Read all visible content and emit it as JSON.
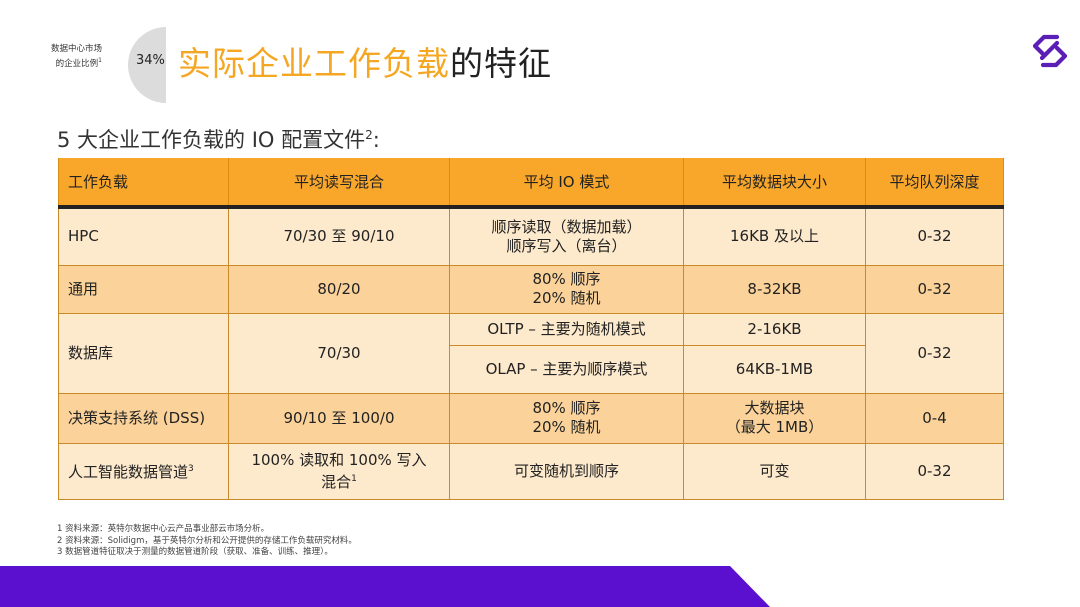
{
  "market": {
    "label_line1": "数据中心市场",
    "label_line2": "的企业比例",
    "sup": "1",
    "percent": "34%",
    "fraction": 0.34,
    "color_slice": "#f5a623",
    "color_rest": "#dcdcdc"
  },
  "title": {
    "highlight": "实际企业工作负载",
    "rest": "的特征"
  },
  "logo": {
    "icon": "solidigm-logo",
    "color": "#5b1fb8"
  },
  "subtitle": {
    "text": "5 大企业工作负载的 IO 配置文件",
    "sup": "2",
    "suffix": ":"
  },
  "table": {
    "headers": [
      "工作负载",
      "平均读写混合",
      "平均 IO 模式",
      "平均数据块大小",
      "平均队列深度"
    ],
    "rows": [
      {
        "workload": "HPC",
        "mix": "70/30 至 90/10",
        "pattern_line1": "顺序读取（数据加载）",
        "pattern_line2": "顺序写入（离台）",
        "block": "16KB 及以上",
        "qd": "0-32"
      },
      {
        "workload": "通用",
        "mix": "80/20",
        "pattern_line1": "80% 顺序",
        "pattern_line2": "20% 随机",
        "block": "8-32KB",
        "qd": "0-32"
      },
      {
        "workload": "数据库",
        "mix": "70/30",
        "sub1_pattern": "OLTP – 主要为随机模式",
        "sub1_block": "2-16KB",
        "sub2_pattern": "OLAP – 主要为顺序模式",
        "sub2_block": "64KB-1MB",
        "qd": "0-32"
      },
      {
        "workload": "决策支持系统 (DSS)",
        "mix": "90/10 至 100/0",
        "pattern_line1": "80% 顺序",
        "pattern_line2": "20% 随机",
        "block_line1": "大数据块",
        "block_line2": "（最大 1MB）",
        "qd": "0-4"
      },
      {
        "workload": "人工智能数据管道",
        "workload_sup": "3",
        "mix_line1": "100% 读取和 100% 写入",
        "mix_line2": "混合",
        "mix_sup": "1",
        "pattern": "可变随机到顺序",
        "block": "可变",
        "qd": "0-32"
      }
    ]
  },
  "notes": [
    "1 资料来源：英特尔数据中心云产品事业部云市场分析。",
    "2 资料来源：Solidigm，基于英特尔分析和公开提供的存储工作负载研究材料。",
    "3 数据管道特征取决于测量的数据管道阶段（获取、准备、训练、推理）。"
  ],
  "band": {
    "color": "#5b0fcf"
  }
}
